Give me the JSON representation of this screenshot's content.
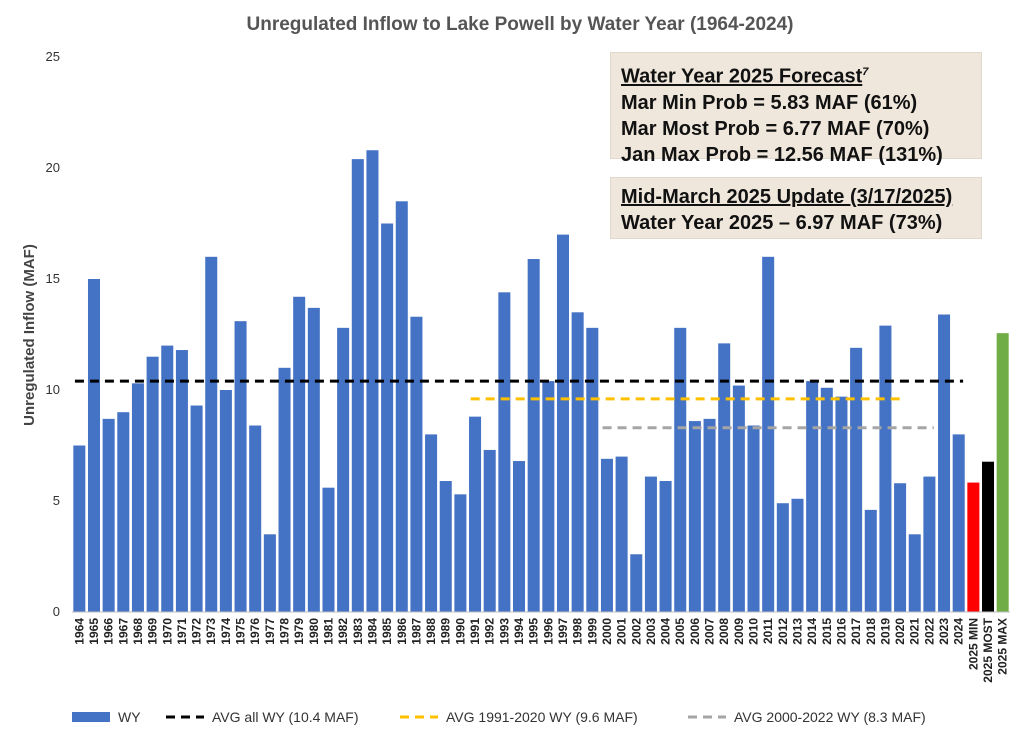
{
  "chart_data": {
    "type": "bar",
    "title": "Unregulated Inflow to Lake Powell by Water Year (1964-2024)",
    "ylabel": "Unregulated Inflow (MAF)",
    "xlabel": "",
    "ylim": [
      0,
      25
    ],
    "yticks": [
      "0",
      "5",
      "10",
      "15",
      "20",
      "25"
    ],
    "grid": false,
    "legend_position": "bottom",
    "categories": [
      "1964",
      "1965",
      "1966",
      "1967",
      "1968",
      "1969",
      "1970",
      "1971",
      "1972",
      "1973",
      "1974",
      "1975",
      "1976",
      "1977",
      "1978",
      "1979",
      "1980",
      "1981",
      "1982",
      "1983",
      "1984",
      "1985",
      "1986",
      "1987",
      "1988",
      "1989",
      "1990",
      "1991",
      "1992",
      "1993",
      "1994",
      "1995",
      "1996",
      "1997",
      "1998",
      "1999",
      "2000",
      "2001",
      "2002",
      "2003",
      "2004",
      "2005",
      "2006",
      "2007",
      "2008",
      "2009",
      "2010",
      "2011",
      "2012",
      "2013",
      "2014",
      "2015",
      "2016",
      "2017",
      "2018",
      "2019",
      "2020",
      "2021",
      "2022",
      "2023",
      "2024",
      "2025 MIN",
      "2025 MOST",
      "2025 MAX"
    ],
    "series": [
      {
        "name": "WY",
        "color": "#4472c4",
        "values": [
          7.5,
          15.0,
          8.7,
          9.0,
          10.3,
          11.5,
          12.0,
          11.8,
          9.3,
          16.0,
          10.0,
          13.1,
          8.4,
          3.5,
          11.0,
          14.2,
          13.7,
          5.6,
          12.8,
          20.4,
          20.8,
          17.5,
          18.5,
          13.3,
          8.0,
          5.9,
          5.3,
          8.8,
          7.3,
          14.4,
          6.8,
          15.9,
          10.4,
          17.0,
          13.5,
          12.8,
          6.9,
          7.0,
          2.6,
          6.1,
          5.9,
          12.8,
          8.6,
          8.7,
          12.1,
          10.2,
          8.4,
          16.0,
          4.9,
          5.1,
          10.4,
          10.1,
          9.7,
          11.9,
          4.6,
          12.9,
          5.8,
          3.5,
          6.1,
          13.4,
          8.0,
          5.83,
          6.77,
          12.56
        ]
      }
    ],
    "forecast_colors": {
      "2025 MIN": "#ff0000",
      "2025 MOST": "#000000",
      "2025 MAX": "#70ad47"
    },
    "reference_lines": [
      {
        "name": "AVG all WY (10.4 MAF)",
        "value": 10.4,
        "color": "#000000",
        "from": "1964",
        "to": "2024"
      },
      {
        "name": "AVG 1991-2020 WY (9.6 MAF)",
        "value": 9.6,
        "color": "#ffc000",
        "from": "1991",
        "to": "2020"
      },
      {
        "name": "AVG 2000-2022 WY (8.3 MAF)",
        "value": 8.3,
        "color": "#a5a5a5",
        "from": "2000",
        "to": "2022"
      }
    ],
    "annotations": {
      "forecast_box": {
        "heading": "Water Year 2025 Forecast",
        "footnote": "7",
        "lines": [
          "Mar Min Prob = 5.83 MAF (61%)",
          "Mar Most Prob = 6.77 MAF (70%)",
          "Jan Max Prob = 12.56 MAF (131%)"
        ]
      },
      "update_box": {
        "heading": "Mid-March 2025 Update (3/17/2025)",
        "lines": [
          "Water Year 2025 – 6.97 MAF (73%)"
        ]
      }
    }
  }
}
